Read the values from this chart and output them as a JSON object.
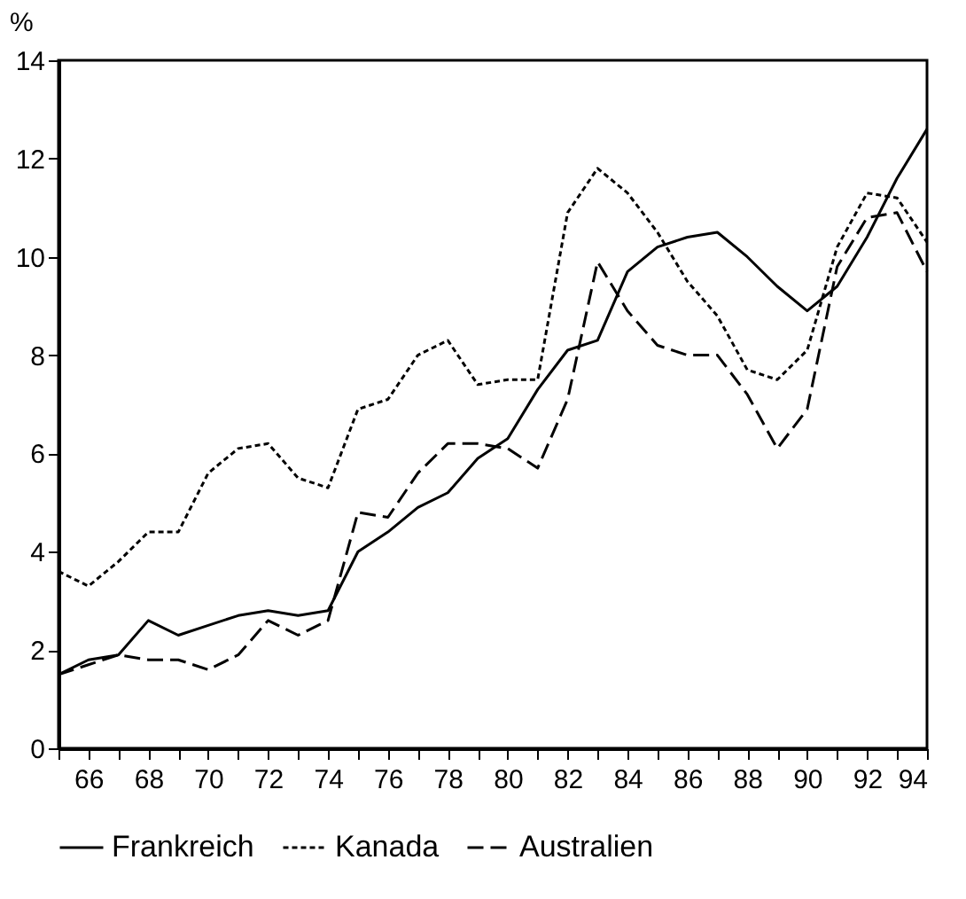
{
  "chart_data": {
    "type": "line",
    "ylabel": "%",
    "x": [
      65,
      66,
      67,
      68,
      69,
      70,
      71,
      72,
      73,
      74,
      75,
      76,
      77,
      78,
      79,
      80,
      81,
      82,
      83,
      84,
      85,
      86,
      87,
      88,
      89,
      90,
      91,
      92,
      93,
      94
    ],
    "series": [
      {
        "name": "Frankreich",
        "color": "#000000",
        "line_style": "solid",
        "values": [
          1.5,
          1.8,
          1.9,
          2.6,
          2.3,
          2.5,
          2.7,
          2.8,
          2.7,
          2.8,
          4.0,
          4.4,
          4.9,
          5.2,
          5.9,
          6.3,
          7.3,
          8.1,
          8.3,
          9.7,
          10.2,
          10.4,
          10.5,
          10.0,
          9.4,
          8.9,
          9.4,
          10.4,
          11.6,
          12.6
        ]
      },
      {
        "name": "Kanada",
        "color": "#000000",
        "line_style": "dotted",
        "values": [
          3.6,
          3.3,
          3.8,
          4.4,
          4.4,
          5.6,
          6.1,
          6.2,
          5.5,
          5.3,
          6.9,
          7.1,
          8.0,
          8.3,
          7.4,
          7.5,
          7.5,
          10.9,
          11.8,
          11.3,
          10.5,
          9.5,
          8.8,
          7.7,
          7.5,
          8.1,
          10.2,
          11.3,
          11.2,
          10.3
        ]
      },
      {
        "name": "Australien",
        "color": "#000000",
        "line_style": "dashed",
        "values": [
          1.5,
          1.7,
          1.9,
          1.8,
          1.8,
          1.6,
          1.9,
          2.6,
          2.3,
          2.6,
          4.8,
          4.7,
          5.6,
          6.2,
          6.2,
          6.1,
          5.7,
          7.1,
          9.9,
          8.9,
          8.2,
          8.0,
          8.0,
          7.2,
          6.1,
          6.9,
          9.8,
          10.8,
          10.9,
          9.7
        ]
      }
    ],
    "xlim": [
      65,
      94
    ],
    "xticks": [
      {
        "value": 65,
        "label": null
      },
      66,
      {
        "value": 67,
        "label": null
      },
      68,
      {
        "value": 69,
        "label": null
      },
      70,
      {
        "value": 71,
        "label": null
      },
      72,
      {
        "value": 73,
        "label": null
      },
      74,
      {
        "value": 75,
        "label": null
      },
      76,
      {
        "value": 77,
        "label": null
      },
      78,
      {
        "value": 79,
        "label": null
      },
      80,
      {
        "value": 81,
        "label": null
      },
      82,
      {
        "value": 83,
        "label": null
      },
      84,
      {
        "value": 85,
        "label": null
      },
      86,
      {
        "value": 87,
        "label": null
      },
      88,
      {
        "value": 89,
        "label": null
      },
      90,
      {
        "value": 91,
        "label": null
      },
      92,
      {
        "value": 93,
        "label": null
      },
      94
    ],
    "ylim": [
      0,
      14
    ],
    "yticks": [
      0,
      2,
      4,
      6,
      8,
      10,
      12,
      14
    ],
    "grid": false,
    "legend": "bottom",
    "marker": "none"
  }
}
